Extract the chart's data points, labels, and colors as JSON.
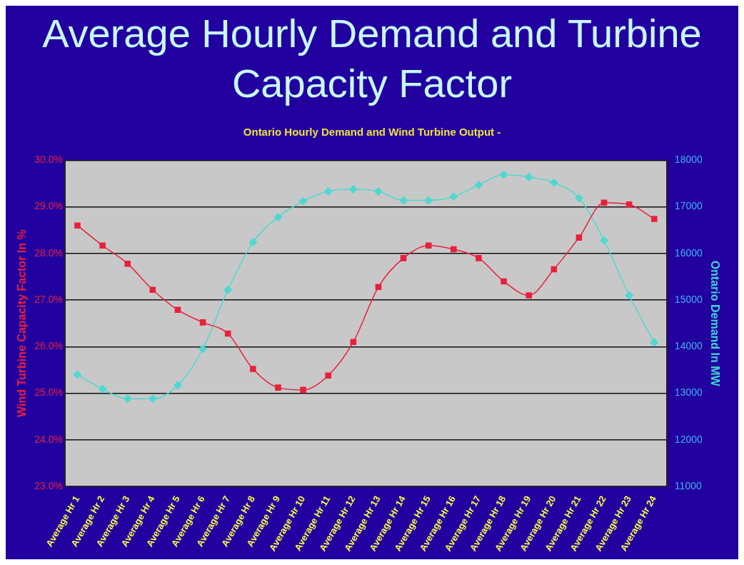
{
  "chart_data": {
    "type": "line",
    "title": "Average Hourly Demand and Turbine Capacity Factor",
    "subtitle": "Ontario Hourly Demand and Wind Turbine Output -",
    "ylabel": "Wind Turbine Capacity Factor In %",
    "y2label": "Ontario Demand In MW",
    "categories": [
      "Average Hr 1",
      "Average Hr 2",
      "Average Hr 3",
      "Average Hr 4",
      "Average Hr 5",
      "Average Hr 6",
      "Average Hr 7",
      "Average Hr 8",
      "Average Hr 9",
      "Average Hr 10",
      "Average Hr 11",
      "Average Hr 12",
      "Average Hr 13",
      "Average Hr 14",
      "Average Hr 15",
      "Average Hr 16",
      "Average Hr 17",
      "Average Hr 18",
      "Average Hr 19",
      "Average Hr 20",
      "Average Hr 21",
      "Average Hr 22",
      "Average Hr 23",
      "Average Hr 24"
    ],
    "series": [
      {
        "color": "#e8203c",
        "marker": "square",
        "values": [
          28.6,
          28.17,
          27.78,
          27.22,
          26.79,
          26.52,
          26.28,
          25.52,
          25.12,
          25.07,
          25.38,
          26.1,
          27.28,
          27.9,
          28.17,
          28.09,
          27.9,
          27.4,
          27.1,
          27.66,
          28.34,
          29.09,
          29.05,
          28.74
        ]
      },
      {
        "color": "#50d8d0",
        "marker": "diamond",
        "axis": "y2",
        "values": [
          13400,
          13090,
          12880,
          12880,
          13170,
          13950,
          15220,
          16240,
          16780,
          17120,
          17330,
          17380,
          17330,
          17140,
          17140,
          17220,
          17470,
          17690,
          17640,
          17520,
          17190,
          16280,
          15100,
          14090
        ]
      }
    ],
    "ylim": [
      23,
      30
    ],
    "yticks": [
      {
        "value": 23,
        "label": "23.0%"
      },
      {
        "value": 24,
        "label": "24.0%"
      },
      {
        "value": 25,
        "label": "25.0%"
      },
      {
        "value": 26,
        "label": "26.0%"
      },
      {
        "value": 27,
        "label": "27.0%"
      },
      {
        "value": 28,
        "label": "28.0%"
      },
      {
        "value": 29,
        "label": "29.0%"
      },
      {
        "value": 30,
        "label": "30.0%"
      }
    ],
    "y2lim": [
      11000,
      18000
    ],
    "y2ticks": [
      11000,
      12000,
      13000,
      14000,
      15000,
      16000,
      17000,
      18000
    ],
    "grid": "y",
    "legend": false
  }
}
